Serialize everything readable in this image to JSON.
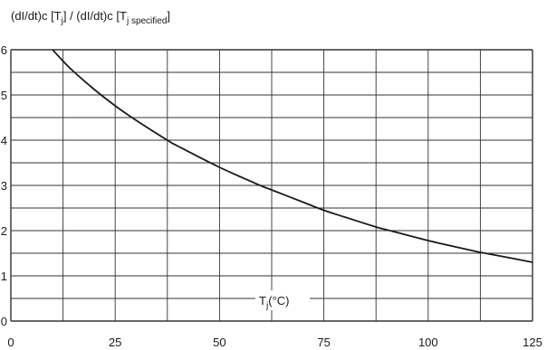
{
  "chart_data": {
    "type": "line",
    "ylabel": {
      "part1": "(dI/dt)c [T",
      "sub1": "j",
      "part2": "] / (dI/dt)c [T",
      "sub2": "j specified",
      "part3": "]"
    },
    "xlabel": {
      "base": "T",
      "sub": "j",
      "unit": "(°C)"
    },
    "xlim": [
      0,
      125
    ],
    "ylim": [
      0,
      6
    ],
    "x_ticks": [
      0,
      25,
      50,
      75,
      100,
      125
    ],
    "y_ticks": [
      0,
      1,
      2,
      3,
      4,
      5,
      6
    ],
    "x_minor_step": 12.5,
    "y_minor_step": 0.5,
    "grid": true,
    "series": [
      {
        "color": "#1a1a1a",
        "x": [
          10,
          12.5,
          15,
          20,
          25,
          30,
          37.5,
          40,
          50,
          60,
          62.5,
          70,
          75,
          80,
          87.5,
          90,
          100,
          110,
          112.5,
          120,
          125
        ],
        "y": [
          6.0,
          5.75,
          5.52,
          5.12,
          4.76,
          4.44,
          4.0,
          3.87,
          3.4,
          2.99,
          2.9,
          2.63,
          2.45,
          2.3,
          2.08,
          2.02,
          1.78,
          1.57,
          1.52,
          1.39,
          1.3
        ]
      }
    ]
  }
}
